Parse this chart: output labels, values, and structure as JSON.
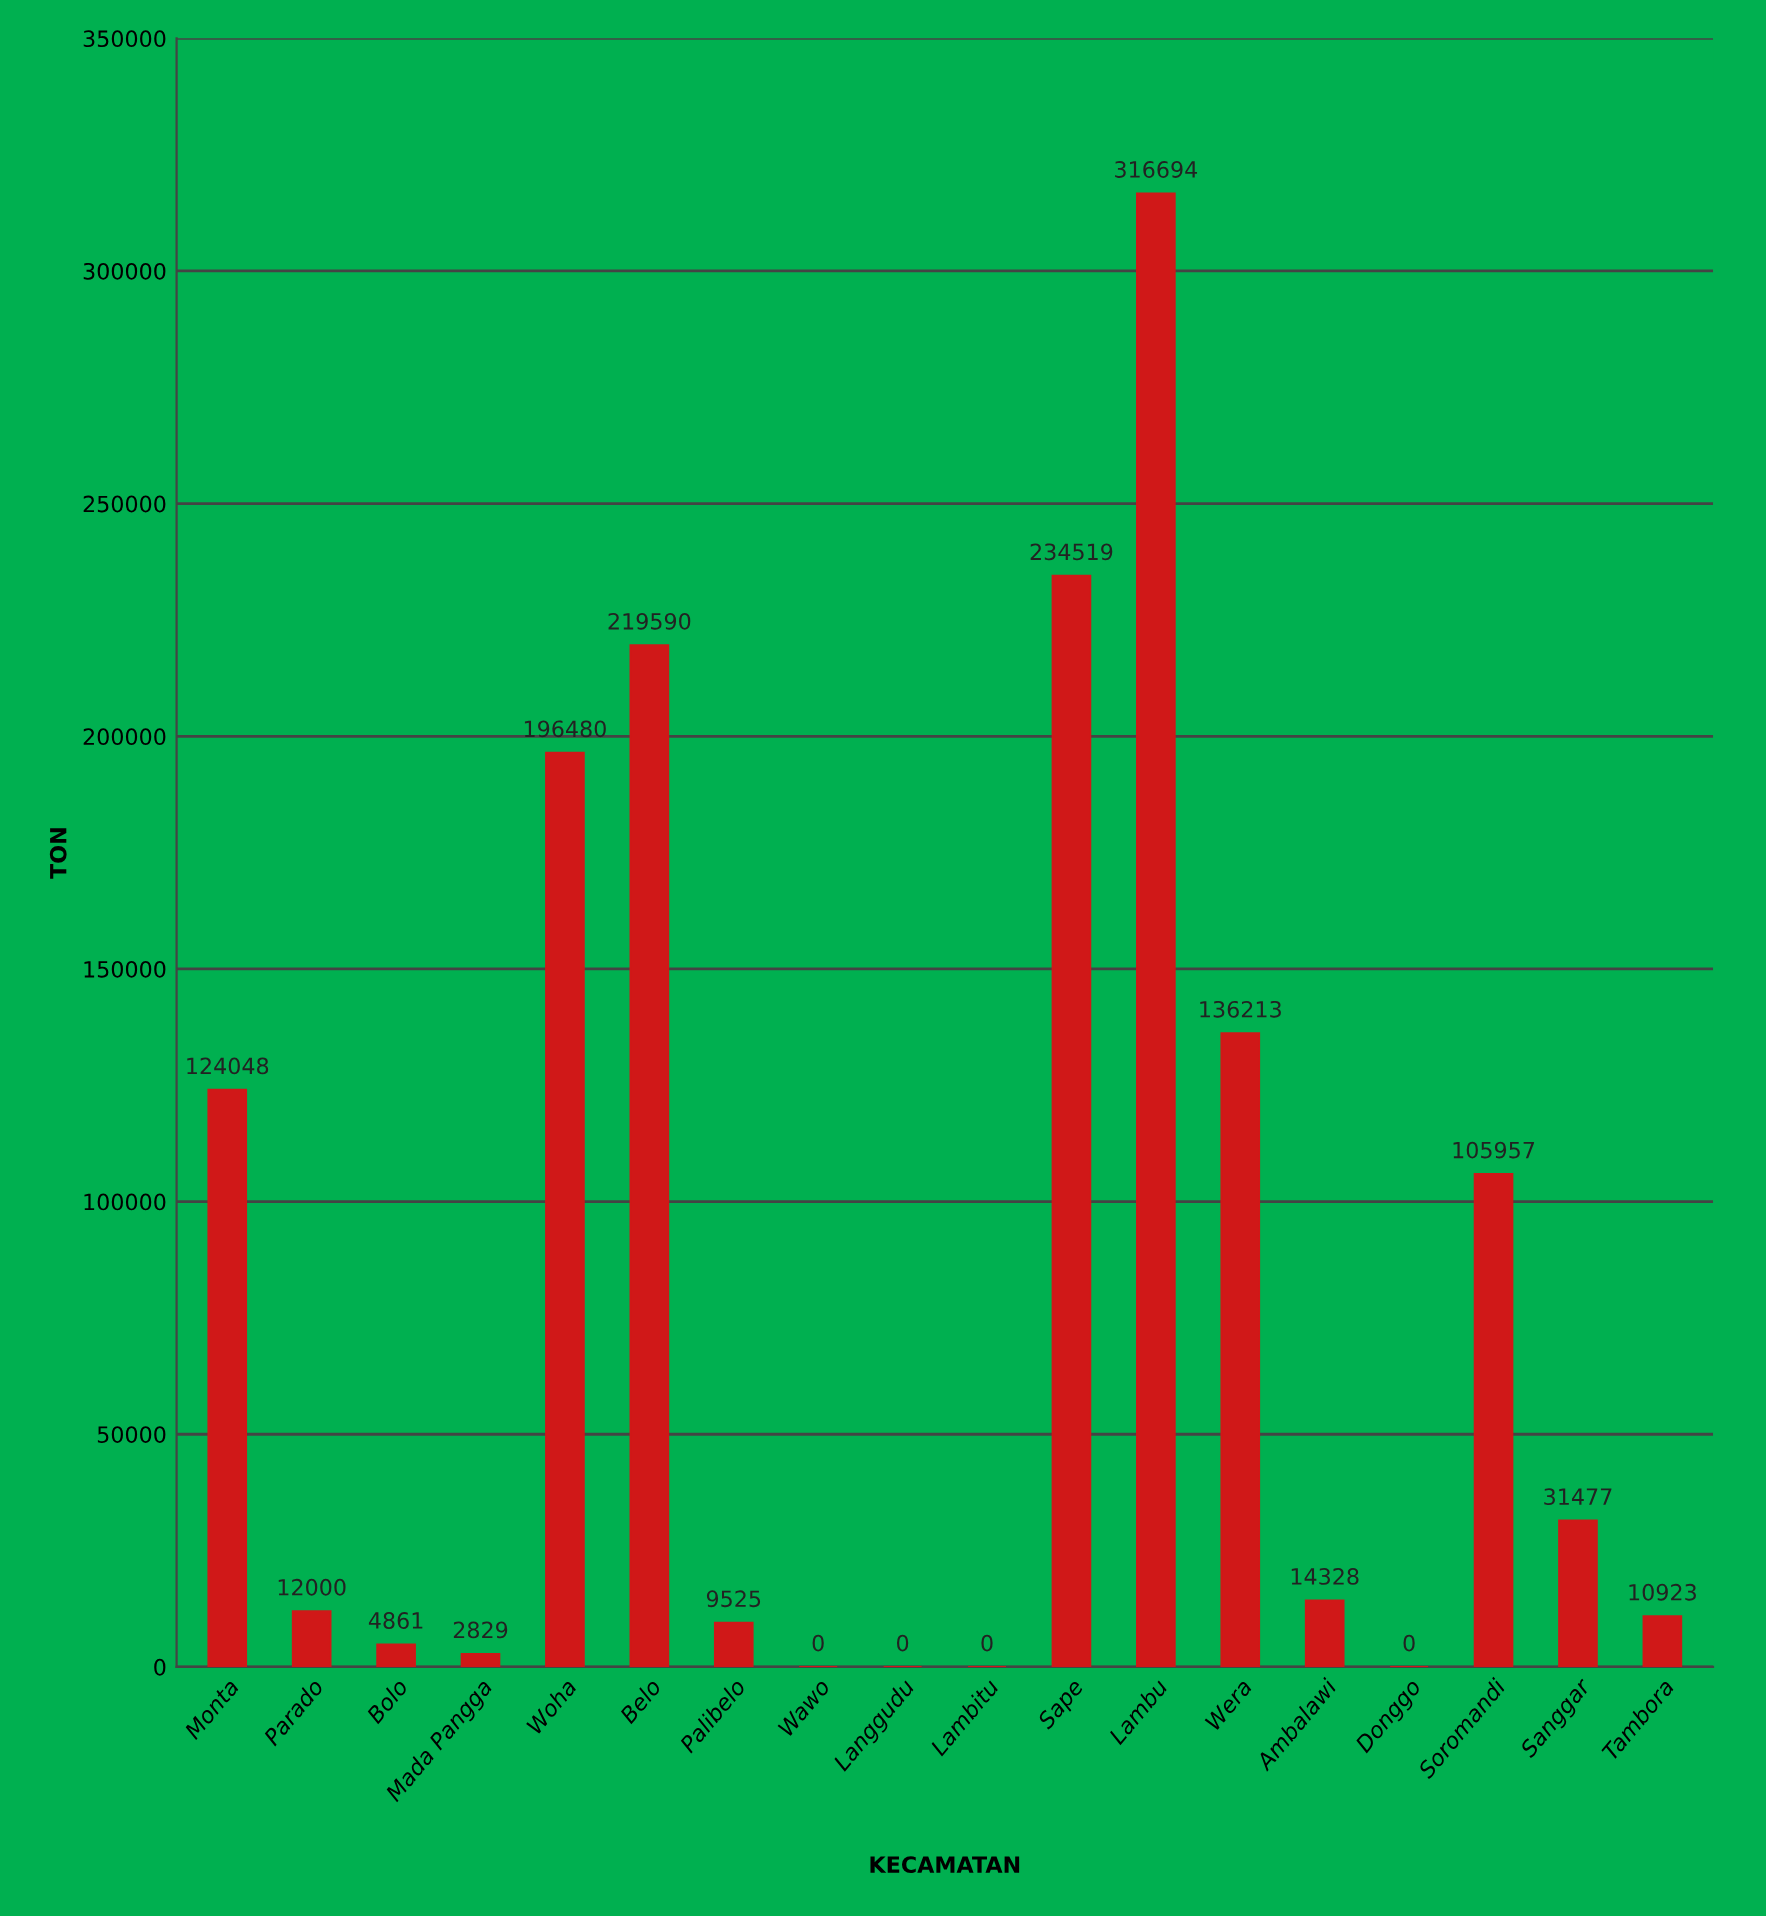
{
  "chart_data": {
    "type": "bar",
    "xlabel": "KECAMATAN",
    "ylabel": "TON",
    "categories": [
      "Monta",
      "Parado",
      "Bolo",
      "Mada Pangga",
      "Woha",
      "Belo",
      "Palibelo",
      "Wawo",
      "Langgudu",
      "Lambitu",
      "Sape",
      "Lambu",
      "Wera",
      "Ambalawi",
      "Donggo",
      "Soromandi",
      "Sanggar",
      "Tambora"
    ],
    "values": [
      124048,
      12000,
      4861,
      2829,
      196480,
      219590,
      9525,
      0,
      0,
      0,
      234519,
      316694,
      136213,
      14328,
      0,
      105957,
      31477,
      10923
    ],
    "color": "#d01818",
    "ylim": [
      0,
      350000
    ],
    "yticks": [
      0,
      50000,
      100000,
      150000,
      200000,
      250000,
      300000,
      350000
    ],
    "grid": "y",
    "data_labels": true
  }
}
